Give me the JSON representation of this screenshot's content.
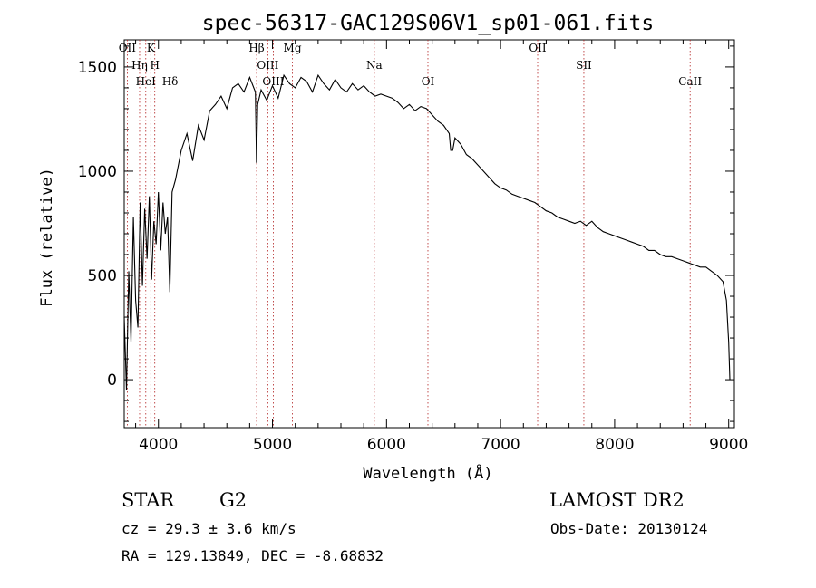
{
  "chart_data": {
    "type": "line",
    "title": "spec-56317-GAC129S06V1_sp01-061.fits",
    "xlabel": "Wavelength (Å)",
    "ylabel": "Flux (relative)",
    "xlim": [
      3700,
      9050
    ],
    "ylim": [
      -230,
      1630
    ],
    "xticks": [
      4000,
      5000,
      6000,
      7000,
      8000,
      9000
    ],
    "yticks": [
      0,
      500,
      1000,
      1500
    ],
    "grid": false,
    "series": [
      {
        "x": [
          3700,
          3720,
          3740,
          3760,
          3780,
          3800,
          3820,
          3840,
          3860,
          3880,
          3900,
          3920,
          3940,
          3960,
          3980,
          4000,
          4020,
          4040,
          4060,
          4080,
          4100,
          4120,
          4150,
          4200,
          4250,
          4300,
          4350,
          4400,
          4450,
          4500,
          4550,
          4600,
          4650,
          4700,
          4750,
          4800,
          4850,
          4860,
          4870,
          4900,
          4950,
          5000,
          5050,
          5100,
          5150,
          5200,
          5250,
          5300,
          5350,
          5400,
          5450,
          5500,
          5550,
          5600,
          5650,
          5700,
          5750,
          5800,
          5850,
          5900,
          5950,
          6000,
          6050,
          6100,
          6150,
          6200,
          6250,
          6300,
          6350,
          6400,
          6450,
          6500,
          6550,
          6563,
          6580,
          6600,
          6650,
          6700,
          6750,
          6800,
          6850,
          6900,
          6950,
          7000,
          7050,
          7100,
          7150,
          7200,
          7250,
          7300,
          7350,
          7400,
          7450,
          7500,
          7550,
          7600,
          7650,
          7700,
          7750,
          7800,
          7850,
          7900,
          7950,
          8000,
          8050,
          8100,
          8150,
          8200,
          8250,
          8300,
          8350,
          8400,
          8450,
          8500,
          8550,
          8600,
          8650,
          8700,
          8750,
          8800,
          8850,
          8900,
          8950,
          8980,
          9000,
          9010
        ],
        "y": [
          300,
          -50,
          520,
          180,
          780,
          380,
          250,
          850,
          450,
          820,
          580,
          880,
          480,
          760,
          650,
          900,
          620,
          850,
          700,
          780,
          420,
          900,
          960,
          1100,
          1180,
          1050,
          1220,
          1150,
          1290,
          1320,
          1360,
          1300,
          1400,
          1420,
          1380,
          1450,
          1380,
          1040,
          1320,
          1390,
          1340,
          1410,
          1350,
          1460,
          1420,
          1400,
          1450,
          1430,
          1380,
          1460,
          1420,
          1390,
          1440,
          1400,
          1380,
          1420,
          1390,
          1410,
          1380,
          1360,
          1370,
          1360,
          1350,
          1330,
          1300,
          1320,
          1290,
          1310,
          1300,
          1270,
          1240,
          1220,
          1180,
          1100,
          1100,
          1160,
          1130,
          1080,
          1060,
          1030,
          1000,
          970,
          940,
          920,
          910,
          890,
          880,
          870,
          860,
          850,
          830,
          810,
          800,
          780,
          770,
          760,
          750,
          760,
          740,
          760,
          730,
          710,
          700,
          690,
          680,
          670,
          660,
          650,
          640,
          620,
          620,
          600,
          590,
          590,
          580,
          570,
          560,
          550,
          540,
          540,
          520,
          500,
          470,
          380,
          180,
          0
        ]
      }
    ],
    "spectral_lines": [
      {
        "label": "OII",
        "x": 3727
      },
      {
        "label": "Hη",
        "x": 3835
      },
      {
        "label": "HeI",
        "x": 3889
      },
      {
        "label": "K",
        "x": 3933
      },
      {
        "label": "H",
        "x": 3968
      },
      {
        "label": "Hδ",
        "x": 4102
      },
      {
        "label": "Hβ",
        "x": 4861
      },
      {
        "label": "OIII",
        "x": 4959
      },
      {
        "label": "OIII",
        "x": 5007
      },
      {
        "label": "Mg",
        "x": 5175
      },
      {
        "label": "Na",
        "x": 5893
      },
      {
        "label": "OI",
        "x": 6363
      },
      {
        "label": "OII",
        "x": 7325
      },
      {
        "label": "SII",
        "x": 7730
      },
      {
        "label": "CaII",
        "x": 8662
      }
    ]
  },
  "info": {
    "class": "STAR",
    "subclass": "G2",
    "survey": "LAMOST DR2",
    "cz": "cz = 29.3 ± 3.6 km/s",
    "obs_date": "Obs-Date: 20130124",
    "radec": "RA = 129.13849, DEC =  -8.68832"
  }
}
